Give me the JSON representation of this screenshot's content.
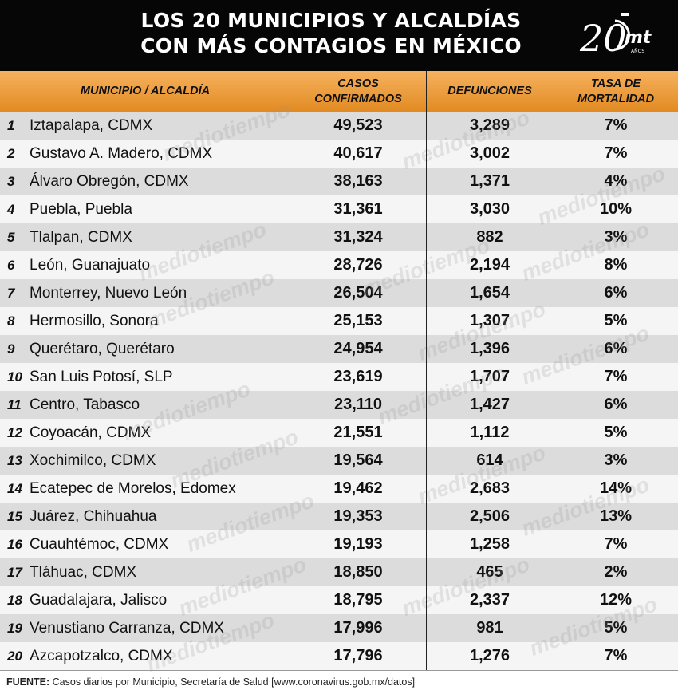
{
  "title": {
    "line1": "LOS 20 MUNICIPIOS Y ALCALDÍAS",
    "line2": "CON MÁS CONTAGIOS EN MÉXICO"
  },
  "logo": {
    "number": "20",
    "letters": "mt",
    "sub": "AÑOS"
  },
  "columns": {
    "municipio": "MUNICIPIO / ALCALDÍA",
    "casos_1": "CASOS",
    "casos_2": "CONFIRMADOS",
    "defunciones": "DEFUNCIONES",
    "tasa_1": "TASA DE",
    "tasa_2": "MORTALIDAD"
  },
  "watermark_text": "mediotiempo",
  "footer": {
    "label": "FUENTE:",
    "text": "Casos diarios por Municipio, Secretaría de Salud [www.coronavirus.gob.mx/datos]"
  },
  "chart_data": {
    "type": "table",
    "columns": [
      "#",
      "MUNICIPIO / ALCALDÍA",
      "CASOS CONFIRMADOS",
      "DEFUNCIONES",
      "TASA DE MORTALIDAD"
    ],
    "rows": [
      {
        "rank": "1",
        "name": "Iztapalapa, CDMX",
        "cases": "49,523",
        "deaths": "3,289",
        "rate": "7%"
      },
      {
        "rank": "2",
        "name": "Gustavo A. Madero, CDMX",
        "cases": "40,617",
        "deaths": "3,002",
        "rate": "7%"
      },
      {
        "rank": "3",
        "name": "Álvaro Obregón, CDMX",
        "cases": "38,163",
        "deaths": "1,371",
        "rate": "4%"
      },
      {
        "rank": "4",
        "name": "Puebla, Puebla",
        "cases": "31,361",
        "deaths": "3,030",
        "rate": "10%"
      },
      {
        "rank": "5",
        "name": "Tlalpan, CDMX",
        "cases": "31,324",
        "deaths": "882",
        "rate": "3%"
      },
      {
        "rank": "6",
        "name": "León, Guanajuato",
        "cases": "28,726",
        "deaths": "2,194",
        "rate": "8%"
      },
      {
        "rank": "7",
        "name": "Monterrey, Nuevo León",
        "cases": "26,504",
        "deaths": "1,654",
        "rate": "6%"
      },
      {
        "rank": "8",
        "name": "Hermosillo, Sonora",
        "cases": "25,153",
        "deaths": "1,307",
        "rate": "5%"
      },
      {
        "rank": "9",
        "name": "Querétaro, Querétaro",
        "cases": "24,954",
        "deaths": "1,396",
        "rate": "6%"
      },
      {
        "rank": "10",
        "name": "San Luis Potosí, SLP",
        "cases": "23,619",
        "deaths": "1,707",
        "rate": "7%"
      },
      {
        "rank": "11",
        "name": "Centro, Tabasco",
        "cases": "23,110",
        "deaths": "1,427",
        "rate": "6%"
      },
      {
        "rank": "12",
        "name": "Coyoacán, CDMX",
        "cases": "21,551",
        "deaths": "1,112",
        "rate": "5%"
      },
      {
        "rank": "13",
        "name": "Xochimilco, CDMX",
        "cases": "19,564",
        "deaths": "614",
        "rate": "3%"
      },
      {
        "rank": "14",
        "name": "Ecatepec de Morelos, Edomex",
        "cases": "19,462",
        "deaths": "2,683",
        "rate": "14%"
      },
      {
        "rank": "15",
        "name": "Juárez, Chihuahua",
        "cases": "19,353",
        "deaths": "2,506",
        "rate": "13%"
      },
      {
        "rank": "16",
        "name": "Cuauhtémoc, CDMX",
        "cases": "19,193",
        "deaths": "1,258",
        "rate": "7%"
      },
      {
        "rank": "17",
        "name": "Tláhuac, CDMX",
        "cases": "18,850",
        "deaths": "465",
        "rate": "2%"
      },
      {
        "rank": "18",
        "name": "Guadalajara, Jalisco",
        "cases": "18,795",
        "deaths": "2,337",
        "rate": "12%"
      },
      {
        "rank": "19",
        "name": "Venustiano Carranza, CDMX",
        "cases": "17,996",
        "deaths": "981",
        "rate": "5%"
      },
      {
        "rank": "20",
        "name": "Azcapotzalco, CDMX",
        "cases": "17,796",
        "deaths": "1,276",
        "rate": "7%"
      }
    ]
  }
}
